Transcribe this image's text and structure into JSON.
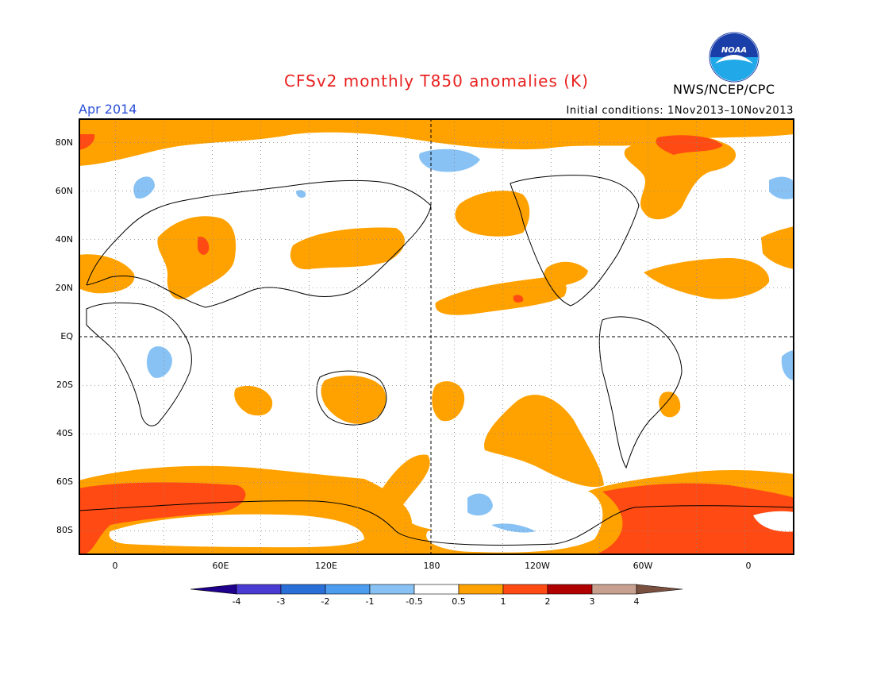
{
  "title": "CFSv2 monthly T850 anomalies (K)",
  "valid_month": "Apr 2014",
  "initial_conditions": "Initial conditions: 1Nov2013–10Nov2013",
  "agency": "NWS/NCEP/CPC",
  "logo_text": "NOAA",
  "lat_labels": [
    "80N",
    "60N",
    "40N",
    "20N",
    "EQ",
    "20S",
    "40S",
    "60S",
    "80S"
  ],
  "lon_labels": [
    "0",
    "60E",
    "120E",
    "180",
    "120W",
    "60W",
    "0"
  ],
  "colorbar": {
    "colors": [
      "#1e008c",
      "#4a3cd2",
      "#2a6fd8",
      "#4c9cf0",
      "#88c2f4",
      "#ffffff",
      "#ffa200",
      "#ff4a14",
      "#b00000",
      "#c8a090",
      "#7a5040"
    ],
    "labels": [
      "-4",
      "-3",
      "-2",
      "-1",
      "-0.5",
      "0.5",
      "1",
      "2",
      "3",
      "4"
    ]
  },
  "colors": {
    "ocean_positive_1": "#ffa200",
    "positive_2": "#ff4a14",
    "negative_1": "#88c2f4",
    "title": "#e8211f",
    "month": "#2a4fd8"
  }
}
